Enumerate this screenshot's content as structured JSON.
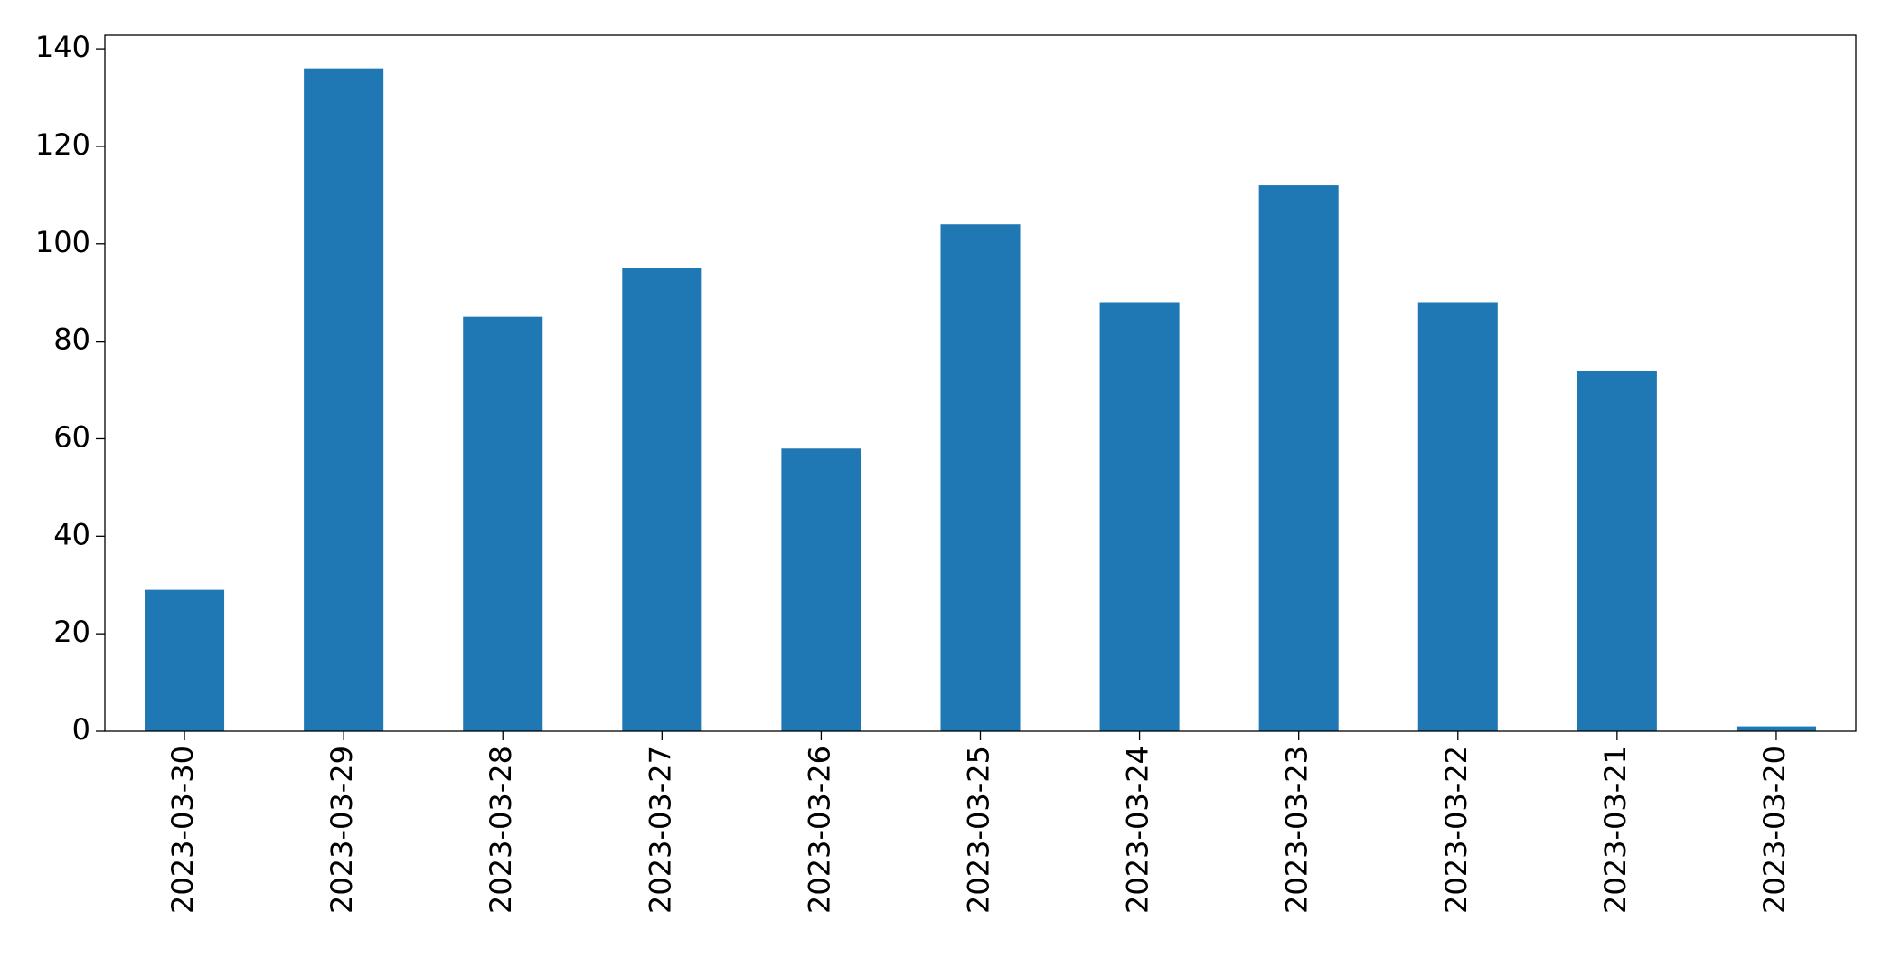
{
  "chart_data": {
    "type": "bar",
    "categories": [
      "2023-03-30",
      "2023-03-29",
      "2023-03-28",
      "2023-03-27",
      "2023-03-26",
      "2023-03-25",
      "2023-03-24",
      "2023-03-23",
      "2023-03-22",
      "2023-03-21",
      "2023-03-20"
    ],
    "values": [
      29,
      136,
      85,
      95,
      58,
      104,
      88,
      112,
      88,
      74,
      1
    ],
    "color": "#1f77b4",
    "ylim": [
      0,
      142.8
    ],
    "yticks": [
      0,
      20,
      40,
      60,
      80,
      100,
      120,
      140
    ]
  }
}
